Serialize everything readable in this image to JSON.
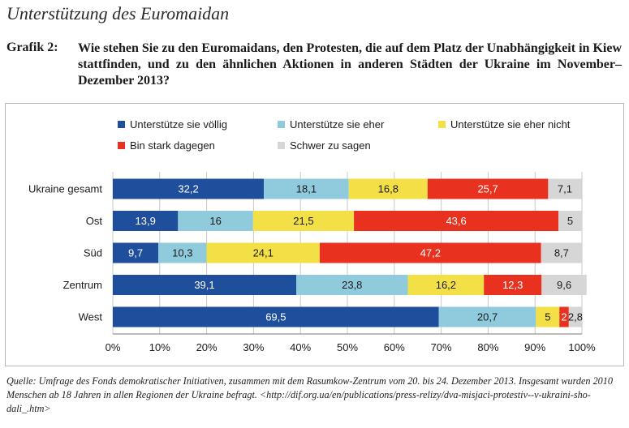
{
  "title": "Unterstützung des Euromaidan",
  "grafik_label": "Grafik 2:",
  "question": "Wie stehen Sie zu den Euromaidans, den Protesten, die auf dem Platz der Unabhängigkeit in Kiew stattfinden, und zu den ähnlichen Aktionen in anderen Städten der Ukraine im November–Dezember 2013?",
  "source": "Quelle: Umfrage des Fonds demokratischer Initiativen, zusammen mit dem Rasumkow-Zentrum vom 20. bis 24. Dezember 2013. Insgesamt wurden 2010 Menschen ab 18 Jahren in allen Regionen der Ukraine befragt. <http://dif.org.ua/en/publications/press-relizy/dva-misjaci-protestiv--v-ukraini-sho-dali_.htm>",
  "chart_data": {
    "type": "bar",
    "orientation": "horizontal",
    "stacked": true,
    "categories": [
      "Ukraine gesamt",
      "Ost",
      "Süd",
      "Zentrum",
      "West"
    ],
    "series": [
      {
        "name": "Unterstütze sie völlig",
        "color": "#1f4e9c",
        "values": [
          32.2,
          13.9,
          9.7,
          39.1,
          69.5
        ],
        "labels": [
          "32,2",
          "13,9",
          "9,7",
          "39,1",
          "69,5"
        ]
      },
      {
        "name": "Unterstütze sie eher",
        "color": "#8fcbdc",
        "values": [
          18.1,
          16,
          10.3,
          23.8,
          20.7
        ],
        "labels": [
          "18,1",
          "16",
          "10,3",
          "23,8",
          "20,7"
        ]
      },
      {
        "name": "Unterstütze sie eher nicht",
        "color": "#f3e046",
        "values": [
          16.8,
          21.5,
          24.1,
          16.2,
          5
        ],
        "labels": [
          "16,8",
          "21,5",
          "24,1",
          "16,2",
          "5"
        ]
      },
      {
        "name": "Bin stark dagegen",
        "color": "#e8321f",
        "values": [
          25.7,
          43.6,
          47.2,
          12.3,
          2
        ],
        "labels": [
          "25,7",
          "43,6",
          "47,2",
          "12,3",
          "2"
        ]
      },
      {
        "name": "Schwer zu sagen",
        "color": "#d6d6d6",
        "values": [
          7.1,
          5,
          8.7,
          9.6,
          2.8
        ],
        "labels": [
          "7,1",
          "5",
          "8,7",
          "9,6",
          "2,8"
        ]
      }
    ],
    "xlim": [
      0,
      100
    ],
    "xticks": [
      "0%",
      "10%",
      "20%",
      "30%",
      "40%",
      "50%",
      "60%",
      "70%",
      "80%",
      "90%",
      "100%"
    ],
    "grid": true,
    "legend": "top"
  }
}
